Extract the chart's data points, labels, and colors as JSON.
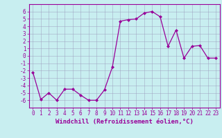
{
  "x": [
    0,
    1,
    2,
    3,
    4,
    5,
    6,
    7,
    8,
    9,
    10,
    11,
    12,
    13,
    14,
    15,
    16,
    17,
    18,
    19,
    20,
    21,
    22,
    23
  ],
  "y": [
    -2.2,
    -5.9,
    -5.0,
    -6.0,
    -4.5,
    -4.5,
    -5.3,
    -6.0,
    -6.0,
    -4.6,
    -1.5,
    4.7,
    4.9,
    5.0,
    5.8,
    6.0,
    5.3,
    1.3,
    3.5,
    -0.3,
    1.3,
    1.4,
    -0.3,
    -0.3
  ],
  "line_color": "#990099",
  "marker": "D",
  "markersize": 2.0,
  "linewidth": 0.9,
  "xlabel": "Windchill (Refroidissement éolien,°C)",
  "xlabel_fontsize": 6.5,
  "xlim": [
    -0.5,
    23.5
  ],
  "ylim": [
    -7,
    7
  ],
  "yticks": [
    -6,
    -5,
    -4,
    -3,
    -2,
    -1,
    0,
    1,
    2,
    3,
    4,
    5,
    6
  ],
  "xticks": [
    0,
    1,
    2,
    3,
    4,
    5,
    6,
    7,
    8,
    9,
    10,
    11,
    12,
    13,
    14,
    15,
    16,
    17,
    18,
    19,
    20,
    21,
    22,
    23
  ],
  "tick_fontsize": 5.5,
  "bg_color": "#c8eef0",
  "grid_color": "#9999bb",
  "spine_color": "#990099"
}
